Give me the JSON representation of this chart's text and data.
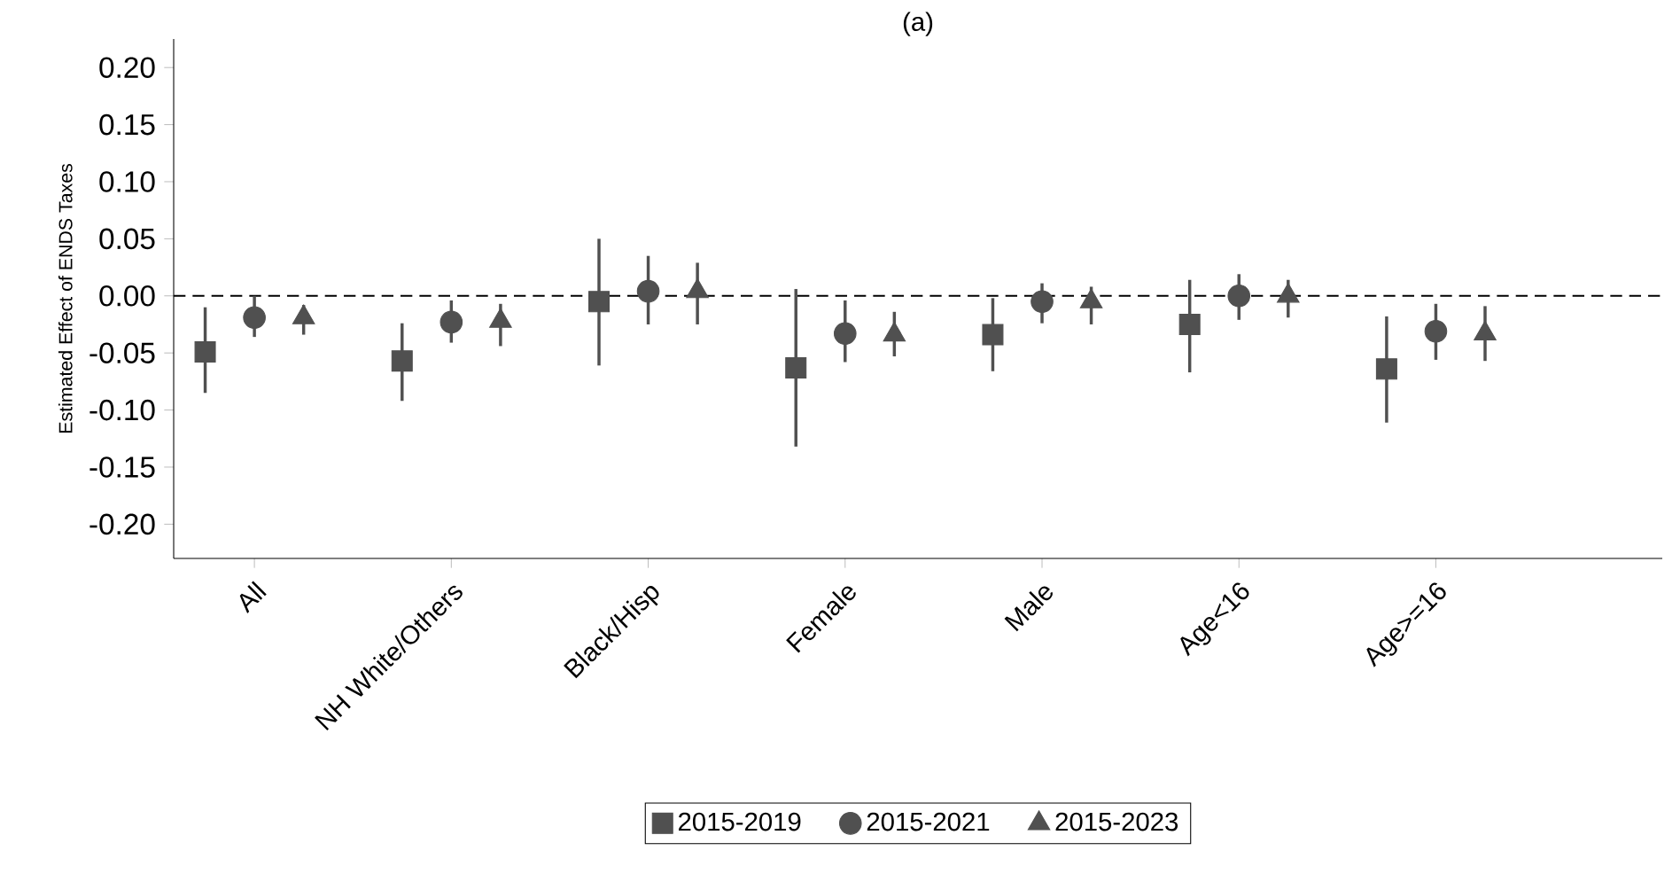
{
  "chart_data": {
    "type": "scatter",
    "title": "(a)",
    "ylabel": "Estimated Effect of ENDS Taxes",
    "categories": [
      "All",
      "NH White/Others",
      "Black/Hisp",
      "Female",
      "Male",
      "Age<16",
      "Age>=16"
    ],
    "series": [
      {
        "name": "2015-2019",
        "color": "#505050",
        "marker": "square",
        "values": [
          -0.049,
          -0.057,
          -0.005,
          -0.063,
          -0.034,
          -0.025,
          -0.064
        ],
        "errors": [
          [
            -0.085,
            -0.01
          ],
          [
            -0.092,
            -0.024
          ],
          [
            -0.061,
            0.05
          ],
          [
            -0.132,
            0.006
          ],
          [
            -0.066,
            -0.002
          ],
          [
            -0.067,
            0.014
          ],
          [
            -0.111,
            -0.018
          ]
        ]
      },
      {
        "name": "2015-2021",
        "color": "#505050",
        "marker": "circle",
        "values": [
          -0.019,
          -0.023,
          0.004,
          -0.033,
          -0.005,
          0.0,
          -0.031
        ],
        "errors": [
          [
            -0.036,
            0.0
          ],
          [
            -0.041,
            -0.004
          ],
          [
            -0.025,
            0.035
          ],
          [
            -0.058,
            -0.004
          ],
          [
            -0.024,
            0.011
          ],
          [
            -0.021,
            0.019
          ],
          [
            -0.056,
            -0.007
          ]
        ]
      },
      {
        "name": "2015-2023",
        "color": "#505050",
        "marker": "triangle",
        "values": [
          -0.019,
          -0.022,
          0.004,
          -0.034,
          -0.005,
          0.0,
          -0.033
        ],
        "errors": [
          [
            -0.034,
            -0.008
          ],
          [
            -0.044,
            -0.007
          ],
          [
            -0.025,
            0.029
          ],
          [
            -0.053,
            -0.014
          ],
          [
            -0.025,
            0.008
          ],
          [
            -0.019,
            0.014
          ],
          [
            -0.057,
            -0.009
          ]
        ]
      }
    ],
    "ylim": [
      -0.23,
      0.225
    ],
    "yticks": [
      {
        "value": -0.2,
        "label": "-0.20"
      },
      {
        "value": -0.15,
        "label": "-0.15"
      },
      {
        "value": -0.1,
        "label": "-0.10"
      },
      {
        "value": -0.05,
        "label": "-0.05"
      },
      {
        "value": 0,
        "label": "0.00"
      },
      {
        "value": 0.05,
        "label": "0.05"
      },
      {
        "value": 0.1,
        "label": "0.10"
      },
      {
        "value": 0.15,
        "label": "0.15"
      },
      {
        "value": 0.2,
        "label": "0.20"
      }
    ],
    "ref_lines": [
      {
        "axis": "y",
        "value": 0,
        "line_style": "dashed",
        "color": "#000000"
      }
    ],
    "grid": false,
    "legend": "bottom"
  }
}
